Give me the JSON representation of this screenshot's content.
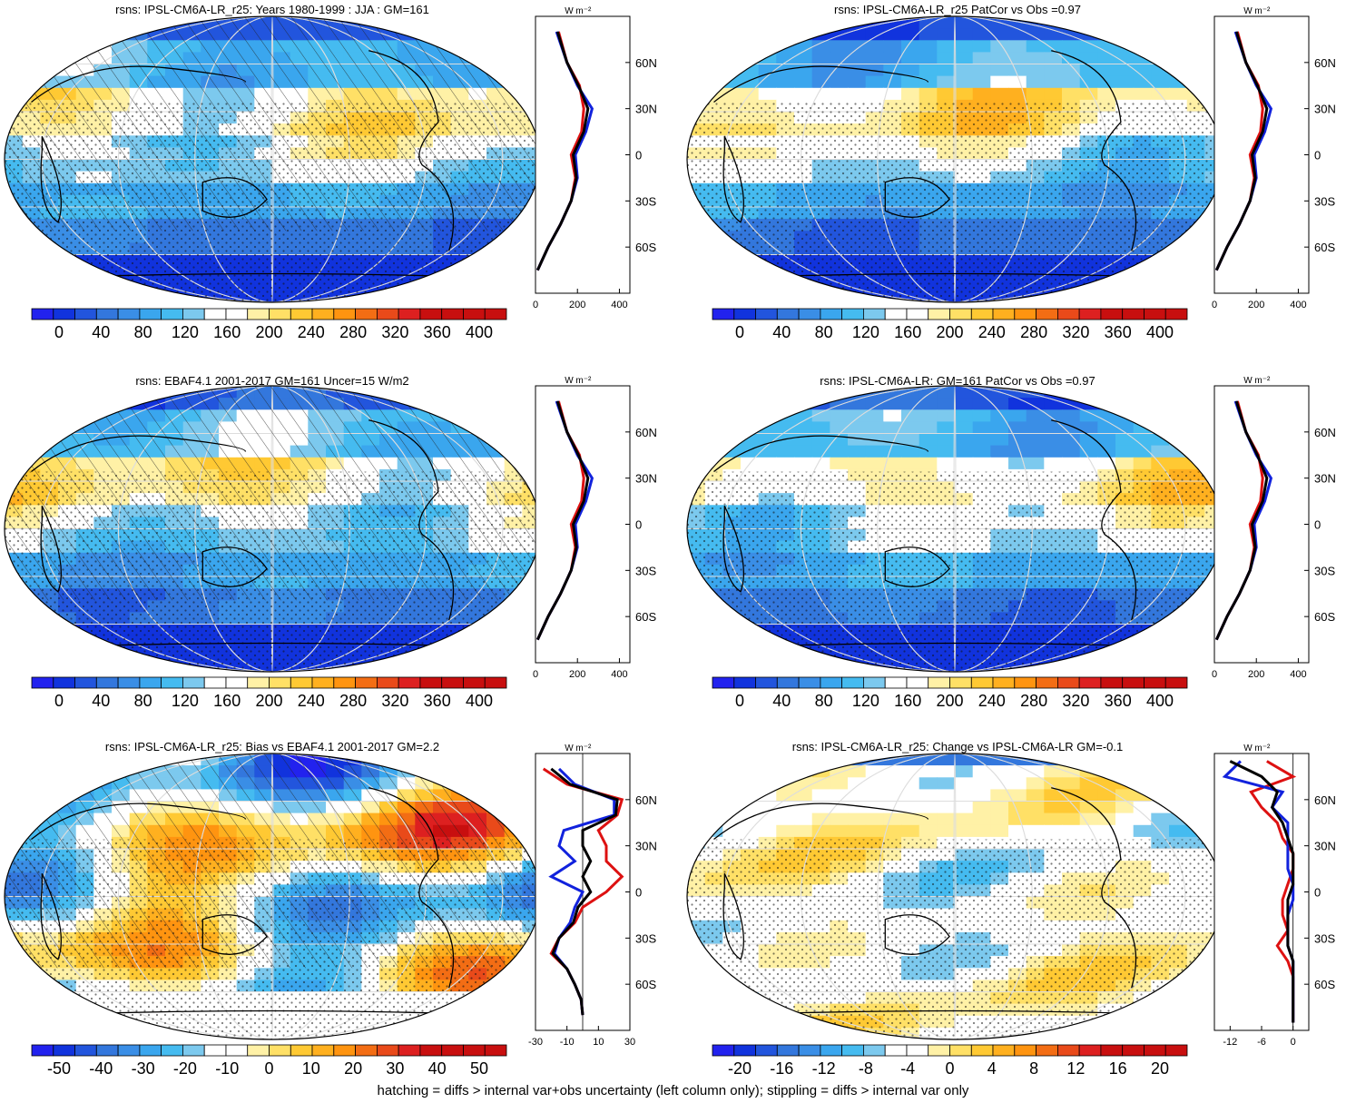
{
  "footer": "hatching = diffs > internal var+obs uncertainty (left column only); stippling = diffs > internal var only",
  "colors": {
    "abs_scale": [
      "#2222ee",
      "#1133dd",
      "#2255dd",
      "#3377dd",
      "#3a8ee6",
      "#3aa6ee",
      "#45bbf0",
      "#7cc9ee",
      "#ffffff",
      "#ffffff",
      "#fff1a6",
      "#ffe066",
      "#ffc933",
      "#ffb01f",
      "#ff9410",
      "#f36d14",
      "#e94a1a",
      "#dd2020",
      "#c80f0f"
    ],
    "bias_scale": [
      "#2222ee",
      "#1133dd",
      "#2255dd",
      "#3377dd",
      "#3a8ee6",
      "#3aa6ee",
      "#45bbf0",
      "#7cc9ee",
      "#ffffff",
      "#ffffff",
      "#fff1a6",
      "#ffe066",
      "#ffc933",
      "#ffb01f",
      "#ff9410",
      "#f36d14",
      "#e94a1a",
      "#dd2020",
      "#c80f0f"
    ],
    "profile_model": "#dd1111",
    "profile_obs": "#1122dd",
    "profile_third": "#000000"
  },
  "panels": [
    {
      "title": "rsns: IPSL-CM6A-LR_r25: Years 1980-1999 : JJA : GM=161",
      "colorbar_labels": [
        "0",
        "40",
        "80",
        "120",
        "160",
        "200",
        "240",
        "280",
        "320",
        "360",
        "400"
      ],
      "profile_xticks": [
        "0",
        "200",
        "400"
      ],
      "profile_xrange": [
        0,
        450
      ],
      "profile_lat_labels": [
        "60N",
        "30N",
        "0",
        "30S",
        "60S"
      ],
      "profile_unit": "W m⁻²",
      "map_kind": "abs",
      "hatched": true
    },
    {
      "title": "rsns: IPSL-CM6A-LR_r25 PatCor vs Obs =0.97",
      "colorbar_labels": [
        "0",
        "40",
        "80",
        "120",
        "160",
        "200",
        "240",
        "280",
        "320",
        "360",
        "400"
      ],
      "profile_xticks": [
        "0",
        "200",
        "400"
      ],
      "profile_xrange": [
        0,
        450
      ],
      "profile_lat_labels": [
        "60N",
        "30N",
        "0",
        "30S",
        "60S"
      ],
      "profile_unit": "W m⁻²",
      "map_kind": "abs",
      "hatched": false
    },
    {
      "title": "rsns: EBAF4.1 2001-2017 GM=161 Uncer=15 W/m2",
      "colorbar_labels": [
        "0",
        "40",
        "80",
        "120",
        "160",
        "200",
        "240",
        "280",
        "320",
        "360",
        "400"
      ],
      "profile_xticks": [
        "0",
        "200",
        "400"
      ],
      "profile_xrange": [
        0,
        450
      ],
      "profile_lat_labels": [
        "60N",
        "30N",
        "0",
        "30S",
        "60S"
      ],
      "profile_unit": "W m⁻²",
      "map_kind": "abs",
      "hatched": true
    },
    {
      "title": "rsns: IPSL-CM6A-LR: GM=161 PatCor vs Obs =0.97",
      "colorbar_labels": [
        "0",
        "40",
        "80",
        "120",
        "160",
        "200",
        "240",
        "280",
        "320",
        "360",
        "400"
      ],
      "profile_xticks": [
        "0",
        "200",
        "400"
      ],
      "profile_xrange": [
        0,
        450
      ],
      "profile_lat_labels": [
        "60N",
        "30N",
        "0",
        "30S",
        "60S"
      ],
      "profile_unit": "W m⁻²",
      "map_kind": "abs",
      "hatched": false
    },
    {
      "title": "rsns: IPSL-CM6A-LR_r25: Bias vs EBAF4.1 2001-2017 GM=2.2",
      "colorbar_labels": [
        "-50",
        "-40",
        "-30",
        "-20",
        "-10",
        "0",
        "10",
        "20",
        "30",
        "40",
        "50"
      ],
      "profile_xticks": [
        "-30",
        "-10",
        "10",
        "30"
      ],
      "profile_xrange": [
        -30,
        30
      ],
      "profile_lat_labels": [
        "60N",
        "30N",
        "0",
        "30S",
        "60S"
      ],
      "profile_unit": "W m⁻²",
      "map_kind": "bias",
      "hatched": true
    },
    {
      "title": "rsns: IPSL-CM6A-LR_r25: Change vs IPSL-CM6A-LR GM=-0.1",
      "colorbar_labels": [
        "-20",
        "-16",
        "-12",
        "-8",
        "-4",
        "0",
        "4",
        "8",
        "12",
        "16",
        "20"
      ],
      "profile_xticks": [
        "-12",
        "-6",
        "0"
      ],
      "profile_xrange": [
        -15,
        3
      ],
      "profile_lat_labels": [
        "60N",
        "30N",
        "0",
        "30S",
        "60S"
      ],
      "profile_unit": "W m⁻²",
      "map_kind": "change",
      "hatched": false
    }
  ],
  "chart_data": [
    {
      "type": "line",
      "title": "rsns: IPSL-CM6A-LR_r25: Years 1980-1999 : JJA : GM=161",
      "y": [
        80,
        60,
        45,
        30,
        15,
        0,
        -15,
        -30,
        -45,
        -60,
        -75
      ],
      "series": [
        {
          "values": [
            110,
            150,
            210,
            230,
            220,
            170,
            190,
            170,
            120,
            60,
            10
          ]
        },
        {
          "values": [
            100,
            150,
            200,
            270,
            240,
            190,
            200,
            170,
            120,
            60,
            10
          ]
        },
        {
          "values": [
            105,
            150,
            205,
            250,
            230,
            180,
            195,
            170,
            120,
            60,
            10
          ]
        }
      ]
    },
    {
      "type": "line",
      "title": "rsns: IPSL-CM6A-LR_r25: Bias vs EBAF4.1 2001-2017 GM=2.2",
      "y": [
        80,
        70,
        60,
        50,
        40,
        30,
        20,
        10,
        0,
        -10,
        -20,
        -30,
        -40,
        -50,
        -60,
        -70,
        -80
      ],
      "series": [
        {
          "values": [
            -25,
            -10,
            25,
            22,
            10,
            15,
            15,
            25,
            15,
            0,
            -5,
            -15,
            -20,
            -10,
            -5,
            -1,
            0
          ]
        },
        {
          "values": [
            -15,
            -5,
            20,
            20,
            -12,
            -15,
            -5,
            -20,
            0,
            -5,
            -8,
            -15,
            -18,
            -10,
            -5,
            -1,
            0
          ]
        },
        {
          "values": [
            -20,
            -8,
            22,
            21,
            0,
            0,
            5,
            0,
            5,
            -3,
            -6,
            -15,
            -19,
            -10,
            -5,
            -1,
            0
          ]
        }
      ]
    },
    {
      "type": "line",
      "title": "rsns: IPSL-CM6A-LR_r25: Change vs IPSL-CM6A-LR GM=-0.1",
      "y": [
        85,
        75,
        65,
        55,
        45,
        35,
        25,
        15,
        5,
        -5,
        -15,
        -25,
        -35,
        -45,
        -55,
        -65,
        -75,
        -85
      ],
      "series": [
        {
          "values": [
            -5,
            0,
            -8,
            -6,
            -3,
            -2,
            0,
            0,
            -1,
            -2,
            -2,
            -1,
            -3,
            -1,
            0,
            0,
            0,
            0
          ]
        },
        {
          "values": [
            -10,
            -13,
            -2,
            -4,
            -1,
            -1,
            -1,
            -1,
            0,
            0,
            -1,
            -1,
            -1,
            0,
            0,
            0,
            0,
            0
          ]
        },
        {
          "values": [
            -12,
            -6,
            -3,
            -4,
            -2,
            -1,
            0,
            0,
            0,
            -1,
            -1,
            -1,
            -1,
            0,
            0,
            0,
            0,
            0
          ]
        }
      ]
    }
  ]
}
